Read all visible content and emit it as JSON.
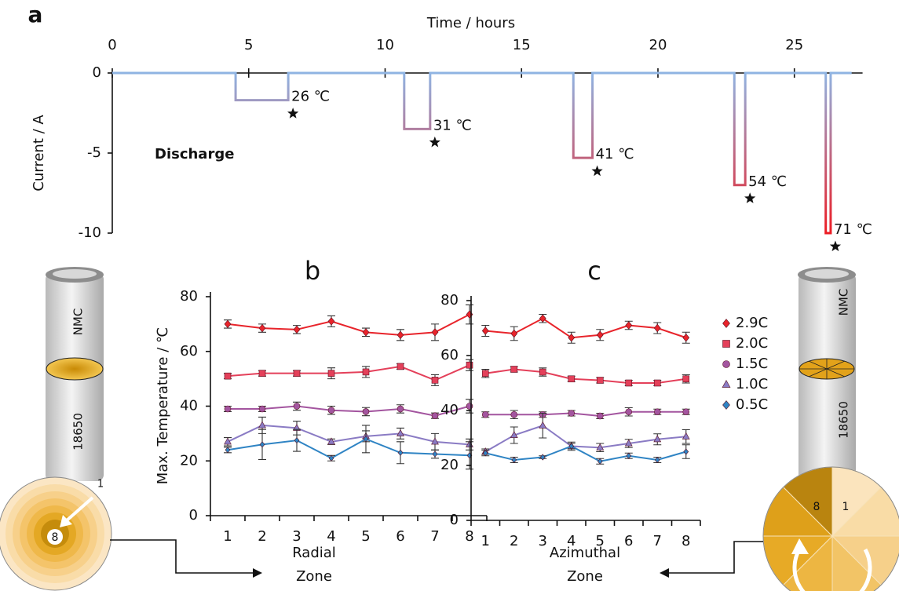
{
  "chart_data": [
    {
      "type": "line",
      "title": "a",
      "xlabel": "Time / hours",
      "ylabel": "Current / A",
      "x": [
        0,
        4.52,
        4.52,
        6.45,
        6.45,
        10.7,
        10.7,
        11.65,
        11.65,
        16.9,
        16.9,
        17.6,
        17.6,
        22.8,
        22.8,
        23.2,
        23.2,
        26.15,
        26.15,
        26.33,
        26.33,
        27.1
      ],
      "values": [
        0,
        0,
        -1.7,
        -1.7,
        0,
        0,
        -3.5,
        -3.5,
        0,
        0,
        -5.3,
        -5.3,
        0,
        0,
        -7.0,
        -7.0,
        0,
        0,
        -10,
        -10,
        0,
        0
      ],
      "color": [
        "#8fb4e3",
        "#ec1c24"
      ],
      "xlim": [
        0,
        27.5
      ],
      "xticks": [
        0,
        5,
        10,
        15,
        20,
        25
      ],
      "ylim": [
        -10,
        0
      ],
      "yticks": [
        0,
        -5,
        -10
      ],
      "label": "Discharge",
      "annotations": [
        {
          "text": "26 ℃",
          "x": 6.45,
          "y": -1.7
        },
        {
          "text": "31 ℃",
          "x": 11.65,
          "y": -3.5
        },
        {
          "text": "41 ℃",
          "x": 17.6,
          "y": -5.3
        },
        {
          "text": "54 ℃",
          "x": 23.2,
          "y": -7.0
        },
        {
          "text": "71 ℃",
          "x": 26.33,
          "y": -10
        }
      ]
    },
    {
      "type": "line",
      "title": "b",
      "ylabel": "Max. Temperature / ℃",
      "xlabel": [
        "Radial",
        "Zone"
      ],
      "categories": [
        "1",
        "2",
        "3",
        "4",
        "5",
        "6",
        "7",
        "8"
      ],
      "ylim": [
        0,
        80
      ],
      "yticks": [
        0,
        20,
        40,
        60,
        80
      ],
      "series": [
        {
          "name": "2.9C",
          "color": "#e8242b",
          "marker": "diamond",
          "values": [
            70,
            68.5,
            68,
            71,
            67,
            66,
            67,
            73.5
          ],
          "errors": [
            1.5,
            1.5,
            1.5,
            2,
            1.5,
            2,
            3,
            3.5
          ]
        },
        {
          "name": "2.0C",
          "color": "#e4405a",
          "marker": "square",
          "values": [
            51,
            52,
            52,
            52,
            52.5,
            54.5,
            49.5,
            55
          ],
          "errors": [
            1,
            1,
            1,
            2,
            2,
            1,
            2,
            2
          ]
        },
        {
          "name": "1.5C",
          "color": "#a3559f",
          "marker": "circle",
          "values": [
            39,
            39,
            40,
            38.5,
            38,
            39,
            36.5,
            40
          ],
          "errors": [
            1,
            1,
            1.5,
            1.5,
            1.5,
            1.5,
            1,
            2.5
          ]
        },
        {
          "name": "1.0C",
          "color": "#8a7bc4",
          "marker": "triangle",
          "values": [
            27,
            33,
            32,
            27,
            29,
            30,
            27,
            26
          ],
          "errors": [
            1.5,
            3,
            2.5,
            1,
            2,
            2,
            3,
            2
          ]
        },
        {
          "name": "0.5C",
          "color": "#2f84c4",
          "marker": "diamond",
          "values": [
            24,
            26,
            27.5,
            21,
            28,
            23,
            22.5,
            22
          ],
          "errors": [
            1,
            5.5,
            4,
            1,
            5,
            4,
            1.5,
            5
          ]
        }
      ]
    },
    {
      "type": "line",
      "title": "c",
      "xlabel": [
        "Azimuthal",
        "Zone"
      ],
      "legend": "right",
      "categories": [
        "1",
        "2",
        "3",
        "4",
        "5",
        "6",
        "7",
        "8"
      ],
      "ylim": [
        0,
        80
      ],
      "yticks": [
        0,
        20,
        40,
        60,
        80
      ],
      "series": [
        {
          "name": "2.9C",
          "color": "#e8242b",
          "marker": "diamond",
          "values": [
            69,
            68,
            73.5,
            66.5,
            67.5,
            71,
            70,
            66.5
          ],
          "errors": [
            2,
            2.5,
            1.5,
            2,
            2,
            1.5,
            2,
            2
          ]
        },
        {
          "name": "2.0C",
          "color": "#e4405a",
          "marker": "square",
          "values": [
            53.5,
            55,
            54,
            51.5,
            51,
            50,
            50,
            51.5
          ],
          "errors": [
            1.5,
            1,
            1.5,
            1,
            1,
            1,
            1,
            1.5
          ]
        },
        {
          "name": "1.5C",
          "color": "#a3559f",
          "marker": "circle",
          "values": [
            38.5,
            38.5,
            38.5,
            39,
            38,
            39.5,
            39.5,
            39.5
          ],
          "errors": [
            1,
            1.5,
            1,
            1,
            1,
            1.5,
            1,
            1
          ]
        },
        {
          "name": "1.0C",
          "color": "#8a7bc4",
          "marker": "triangle",
          "values": [
            25,
            31,
            34.5,
            27,
            26.5,
            28,
            29.5,
            30.5
          ],
          "errors": [
            1,
            3,
            4.5,
            1.5,
            1.5,
            1.5,
            2,
            2.5
          ]
        },
        {
          "name": "0.5C",
          "color": "#2f84c4",
          "marker": "diamond",
          "values": [
            24.5,
            22,
            23,
            27,
            21.5,
            23.5,
            22,
            25
          ],
          "errors": [
            1,
            1,
            0.5,
            1,
            1,
            1,
            1,
            2.5
          ]
        }
      ]
    }
  ],
  "illustration": {
    "cathode": "NMC",
    "format": "18650",
    "zone_first": "1",
    "zone_last": "8"
  }
}
